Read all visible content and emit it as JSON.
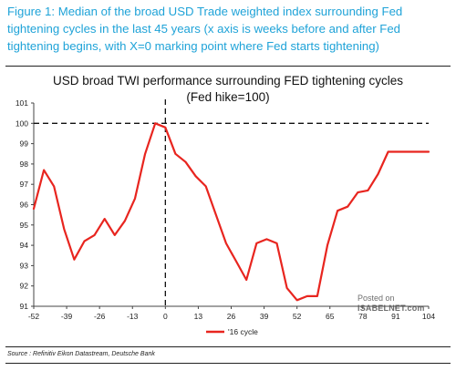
{
  "caption": {
    "line1": "Figure 1: Median of the broad USD Trade weighted index surrounding Fed",
    "line2": "tightening cycles in the last 45 years (x axis is weeks before and after Fed",
    "line3": "tightening begins, with X=0 marking point where Fed starts tightening)"
  },
  "source": "Source : Refinitiv Eikon Datastream, Deutsche Bank",
  "watermark": {
    "line1": "Posted on",
    "line2": "ISABELNET.com"
  },
  "colors": {
    "caption": "#1fa3d8",
    "series": "#e8251f",
    "axis": "#444444",
    "guide": "#111111"
  },
  "chart_data": {
    "type": "line",
    "title": "USD broad TWI performance surrounding FED tightening cycles",
    "subtitle": "(Fed hike=100)",
    "xlabel": "",
    "ylabel": "",
    "xlim": [
      -52,
      104
    ],
    "ylim": [
      91,
      101
    ],
    "xticks": [
      -52,
      -39,
      -26,
      -13,
      0,
      13,
      26,
      39,
      52,
      65,
      78,
      91,
      104
    ],
    "yticks": [
      91,
      92,
      93,
      94,
      95,
      96,
      97,
      98,
      99,
      100,
      101
    ],
    "reference_lines": {
      "x": 0,
      "y": 100,
      "style": "dashed"
    },
    "grid": false,
    "legend": "bottom-center",
    "series": [
      {
        "name": "'16 cycle",
        "x": [
          -52,
          -48,
          -44,
          -40,
          -36,
          -32,
          -28,
          -24,
          -20,
          -16,
          -12,
          -8,
          -4,
          0,
          4,
          8,
          12,
          16,
          20,
          24,
          28,
          32,
          36,
          40,
          44,
          48,
          52,
          56,
          60,
          64,
          68,
          72,
          76,
          80,
          84,
          88,
          92,
          96,
          100,
          104
        ],
        "values": [
          95.8,
          97.7,
          96.9,
          94.8,
          93.3,
          94.2,
          94.5,
          95.3,
          94.5,
          95.2,
          96.3,
          98.5,
          100.0,
          99.8,
          98.5,
          98.1,
          97.4,
          96.9,
          95.5,
          94.1,
          93.2,
          92.3,
          94.1,
          94.3,
          94.1,
          91.9,
          91.3,
          91.5,
          91.5,
          94.0,
          95.7,
          95.9,
          96.6,
          96.7,
          97.5,
          98.6,
          98.6,
          98.6,
          98.6,
          98.6
        ]
      }
    ]
  }
}
